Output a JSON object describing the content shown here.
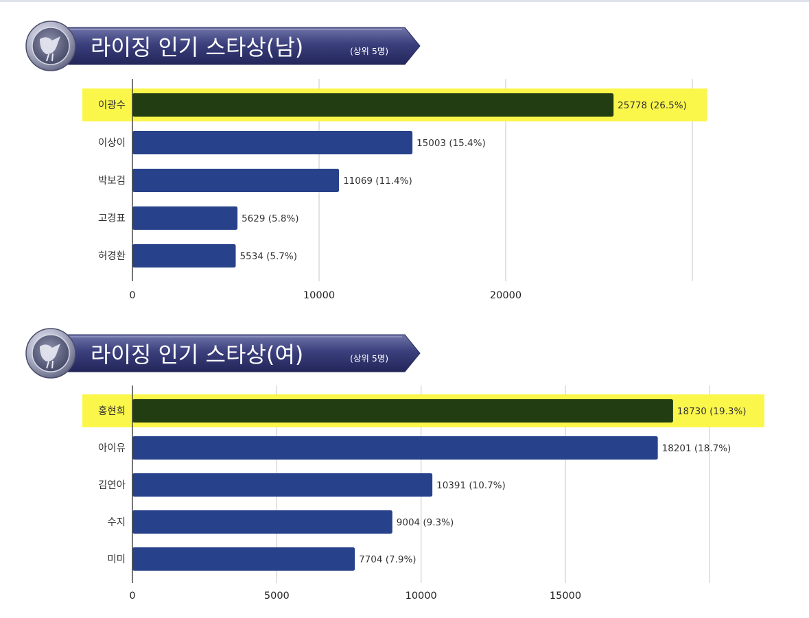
{
  "colors": {
    "bar": "#27418a",
    "highlight_bar": "#223d12",
    "highlight_band": "#fbf74a",
    "grid": "#cfcfcf",
    "banner": "#3a3d78"
  },
  "chart_data": [
    {
      "type": "bar",
      "orientation": "horizontal",
      "title": "라이징 인기 스타상(남)",
      "subtitle": "(상위 5명)",
      "categories": [
        "이광수",
        "이상이",
        "박보검",
        "고경표",
        "허경환"
      ],
      "values": [
        25778,
        15003,
        11069,
        5629,
        5534
      ],
      "value_labels": [
        "25778 (26.5%)",
        "15003 (15.4%)",
        "11069 (11.4%)",
        "5629 (5.8%)",
        "5534 (5.7%)"
      ],
      "highlight": [
        "이광수"
      ],
      "xticks": [
        0,
        10000,
        20000
      ],
      "xtick_labels": [
        "0",
        "10000",
        "20000"
      ],
      "xlim": [
        0,
        30000
      ],
      "grid": true,
      "xlabel": "",
      "ylabel": ""
    },
    {
      "type": "bar",
      "orientation": "horizontal",
      "title": "라이징 인기 스타상(여)",
      "subtitle": "(상위 5명)",
      "categories": [
        "홍현희",
        "아이유",
        "김연아",
        "수지",
        "미미"
      ],
      "values": [
        18730,
        18201,
        10391,
        9004,
        7704
      ],
      "value_labels": [
        "18730 (19.3%)",
        "18201 (18.7%)",
        "10391 (10.7%)",
        "9004 (9.3%)",
        "7704 (7.9%)"
      ],
      "highlight": [
        "홍현희"
      ],
      "xticks": [
        0,
        5000,
        10000,
        15000
      ],
      "xtick_labels": [
        "0",
        "5000",
        "10000",
        "15000"
      ],
      "xlim": [
        0,
        20000
      ],
      "grid": true,
      "xlabel": "",
      "ylabel": ""
    }
  ]
}
